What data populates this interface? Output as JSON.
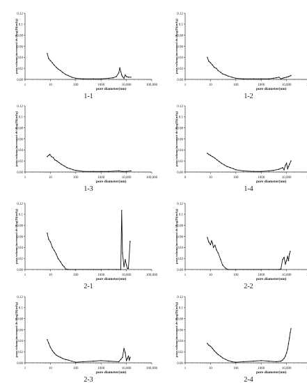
{
  "chart_data": [
    {
      "type": "line",
      "label": "1-1",
      "xlabel": "pore diameter(nm)",
      "ylabel": "pore volume increment dv/dlog(D)(ml/g)",
      "x_scale": "log",
      "xlim": [
        1,
        100000
      ],
      "ylim": [
        0,
        0.12
      ],
      "x_ticks": [
        "1",
        "10",
        "100",
        "1000",
        "10,000",
        "100,000"
      ],
      "y_ticks": [
        "0.00",
        "0.02",
        "0.04",
        "0.06",
        "0.08",
        "0.1",
        "0.12"
      ],
      "x": [
        7.5,
        8.5,
        10,
        12,
        14,
        17,
        20,
        25,
        30,
        40,
        50,
        70,
        100,
        200,
        500,
        1000,
        2000,
        3000,
        4000,
        5000,
        5500,
        6000,
        6500,
        7000,
        8000,
        9000,
        10000,
        12000,
        15000
      ],
      "y": [
        0.047,
        0.038,
        0.034,
        0.03,
        0.026,
        0.022,
        0.019,
        0.016,
        0.013,
        0.009,
        0.007,
        0.004,
        0.002,
        0.001,
        0.001,
        0.001,
        0.002,
        0.003,
        0.005,
        0.012,
        0.021,
        0.014,
        0.008,
        0.005,
        0.002,
        0.008,
        0.005,
        0.004,
        0.004
      ]
    },
    {
      "type": "line",
      "label": "1-2",
      "xlabel": "pore diameter(nm)",
      "ylabel": "pore volume increment dv/dlog(D)(ml/g)",
      "x_scale": "log",
      "xlim": [
        1,
        100000
      ],
      "ylim": [
        0,
        0.12
      ],
      "x_ticks": [
        "1",
        "10",
        "100",
        "1000",
        "10,000",
        "100,000"
      ],
      "y_ticks": [
        "0.00",
        "0.02",
        "0.04",
        "0.06",
        "0.08",
        "0.1",
        "0.12"
      ],
      "x": [
        7.5,
        8.5,
        10,
        12,
        14,
        17,
        20,
        25,
        30,
        40,
        50,
        70,
        100,
        200,
        500,
        1000,
        2000,
        3000,
        4000,
        5000,
        6000,
        7000,
        8000,
        10000,
        12000,
        15000
      ],
      "y": [
        0.04,
        0.033,
        0.03,
        0.026,
        0.022,
        0.02,
        0.016,
        0.013,
        0.01,
        0.008,
        0.006,
        0.004,
        0.002,
        0.001,
        0.001,
        0.001,
        0.001,
        0.002,
        0.003,
        0.004,
        0.001,
        0.002,
        0.003,
        0.004,
        0.005,
        0.007
      ]
    },
    {
      "type": "line",
      "label": "1-3",
      "xlabel": "pore diameter(nm)",
      "ylabel": "pore volume increment dv/dlog(D)(ml/g)",
      "x_scale": "log",
      "xlim": [
        1,
        100000
      ],
      "ylim": [
        0,
        0.12
      ],
      "x_ticks": [
        "1",
        "10",
        "100",
        "1000",
        "10,000",
        "100,000"
      ],
      "y_ticks": [
        "0.00",
        "0.02",
        "0.04",
        "0.06",
        "0.08",
        "0.1",
        "0.12"
      ],
      "x": [
        7.5,
        8.5,
        9.5,
        11,
        13,
        15,
        18,
        22,
        27,
        35,
        45,
        60,
        80,
        100,
        200,
        500,
        1000,
        2000,
        5000,
        7000,
        10000,
        15000
      ],
      "y": [
        0.028,
        0.03,
        0.032,
        0.028,
        0.026,
        0.022,
        0.02,
        0.017,
        0.014,
        0.011,
        0.008,
        0.006,
        0.004,
        0.003,
        0.001,
        0.001,
        0.001,
        0.001,
        0.002,
        0.001,
        0.001,
        0.002
      ]
    },
    {
      "type": "line",
      "label": "1-4",
      "xlabel": "pore diameter(nm)",
      "ylabel": "pore volume increment dv/dlog(D)(ml/g)",
      "x_scale": "log",
      "xlim": [
        0,
        100000
      ],
      "ylim": [
        0,
        0.12
      ],
      "x_ticks": [
        "0",
        "10",
        "100",
        "1000",
        "10,000",
        "100,000"
      ],
      "y_ticks": [
        "0.00",
        "0.02",
        "0.04",
        "0.06",
        "0.08",
        "0.1",
        "0.12"
      ],
      "x": [
        7.5,
        8.5,
        10,
        12,
        15,
        18,
        22,
        27,
        35,
        45,
        60,
        80,
        100,
        200,
        500,
        1000,
        2000,
        3000,
        5000,
        7000,
        8000,
        9000,
        10000,
        11000,
        12000,
        13000,
        15000
      ],
      "y": [
        0.034,
        0.032,
        0.03,
        0.028,
        0.025,
        0.022,
        0.019,
        0.016,
        0.013,
        0.01,
        0.008,
        0.006,
        0.004,
        0.002,
        0.001,
        0.001,
        0.002,
        0.003,
        0.005,
        0.008,
        0.004,
        0.012,
        0.016,
        0.006,
        0.01,
        0.014,
        0.02
      ]
    },
    {
      "type": "line",
      "label": "2-1",
      "xlabel": "pore diameter(nm)",
      "ylabel": "pore volume increment dv/dlog(D)(ml/g)",
      "x_scale": "log",
      "xlim": [
        1,
        100000
      ],
      "ylim": [
        0,
        0.12
      ],
      "x_ticks": [
        "1",
        "10",
        "100",
        "1000",
        "10,000",
        "100,000"
      ],
      "y_ticks": [
        "0.00",
        "0.02",
        "0.04",
        "0.06",
        "0.08",
        "0.1",
        "0.12"
      ],
      "x": [
        7.5,
        8.5,
        10,
        12,
        14,
        17,
        20,
        25,
        30,
        35,
        40,
        50,
        100,
        500,
        1000,
        2000,
        4000,
        6000,
        6500,
        7000,
        8000,
        9000,
        10000,
        11000,
        12000,
        14000
      ],
      "y": [
        0.066,
        0.055,
        0.05,
        0.04,
        0.035,
        0.028,
        0.02,
        0.014,
        0.008,
        0.005,
        0.001,
        0.0,
        0.0,
        0.0,
        0.0,
        0.0,
        0.0,
        0.0,
        0.107,
        0.03,
        0.005,
        0.018,
        0.008,
        0.002,
        0.002,
        0.051
      ]
    },
    {
      "type": "line",
      "label": "2-2",
      "xlabel": "pore diameter(nm)",
      "ylabel": "pore volume increment dv/dlog(D)(ml/g)",
      "x_scale": "log",
      "xlim": [
        1,
        100000
      ],
      "ylim": [
        0,
        0.12
      ],
      "x_ticks": [
        "1",
        "10",
        "100",
        "1000",
        "10,000",
        "100,000"
      ],
      "y_ticks": [
        "0.00",
        "0.02",
        "0.04",
        "0.06",
        "0.08",
        "0.1",
        "0.12"
      ],
      "x": [
        7.5,
        8.5,
        10,
        11,
        12,
        13,
        15,
        17,
        20,
        25,
        30,
        40,
        50,
        100,
        500,
        1000,
        2000,
        5000,
        6000,
        7000,
        8000,
        9000,
        10000,
        11000,
        12000,
        13000,
        14000
      ],
      "y": [
        0.058,
        0.05,
        0.045,
        0.052,
        0.048,
        0.04,
        0.044,
        0.036,
        0.03,
        0.018,
        0.008,
        0.002,
        0.0,
        0.0,
        0.0,
        0.0,
        0.0,
        0.0,
        0.001,
        0.018,
        0.022,
        0.01,
        0.016,
        0.024,
        0.016,
        0.028,
        0.033
      ]
    },
    {
      "type": "line",
      "label": "2-3",
      "xlabel": "pore diameter(nm)",
      "ylabel": "pore volume increment dv/dlog(D)(ml/g)",
      "x_scale": "log",
      "xlim": [
        1,
        100000
      ],
      "ylim": [
        0,
        0.12
      ],
      "x_ticks": [
        "1",
        "10",
        "100",
        "1000",
        "10,000",
        "100,000"
      ],
      "y_ticks": [
        "0.00",
        "0.02",
        "0.04",
        "0.06",
        "0.08",
        "0.1",
        "0.12"
      ],
      "x": [
        7.5,
        8.5,
        10,
        12,
        14,
        17,
        20,
        25,
        30,
        40,
        50,
        70,
        100,
        200,
        500,
        1000,
        2000,
        5000,
        6000,
        7000,
        8000,
        9000,
        10000,
        11000,
        12000,
        13000,
        14000
      ],
      "y": [
        0.042,
        0.036,
        0.028,
        0.022,
        0.018,
        0.014,
        0.012,
        0.01,
        0.008,
        0.006,
        0.005,
        0.003,
        0.001,
        0.002,
        0.003,
        0.004,
        0.003,
        0.002,
        0.006,
        0.01,
        0.026,
        0.018,
        0.004,
        0.008,
        0.012,
        0.005,
        0.01
      ]
    },
    {
      "type": "line",
      "label": "2-4",
      "xlabel": "pore diameter(nm)",
      "ylabel": "pore volume increment dv/dlog(D)(ml/g)",
      "x_scale": "log",
      "xlim": [
        1,
        100000
      ],
      "ylim": [
        0,
        0.12
      ],
      "x_ticks": [
        "1",
        "10",
        "100",
        "1000",
        "10,000",
        "100,000"
      ],
      "y_ticks": [
        "0.00",
        "0.02",
        "0.04",
        "0.06",
        "0.08",
        "0.1",
        "0.12"
      ],
      "x": [
        7.5,
        8.5,
        10,
        12,
        14,
        17,
        20,
        25,
        30,
        40,
        50,
        70,
        100,
        200,
        500,
        1000,
        2000,
        4000,
        6000,
        7000,
        8000,
        9000,
        10000,
        11000,
        12000,
        13000,
        14000,
        15000
      ],
      "y": [
        0.035,
        0.032,
        0.03,
        0.026,
        0.022,
        0.018,
        0.015,
        0.012,
        0.009,
        0.006,
        0.004,
        0.002,
        0.001,
        0.002,
        0.003,
        0.004,
        0.003,
        0.002,
        0.003,
        0.005,
        0.008,
        0.012,
        0.018,
        0.025,
        0.035,
        0.045,
        0.055,
        0.062
      ]
    }
  ]
}
